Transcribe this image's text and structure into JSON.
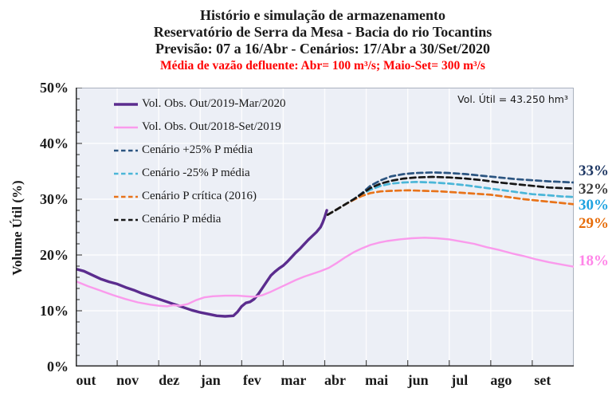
{
  "chart_data": {
    "type": "line",
    "title": "Histório e simulação de armazenamento",
    "subtitle": "Reservatório de Serra da Mesa - Bacia do rio Tocantins",
    "subtitle2": "Previsão: 07 a 16/Abr - Cenários: 17/Abr a 30/Set/2020",
    "subtitle3": "Média de vazão defluente: Abr= 100 m³/s; Maio-Set= 300 m³/s",
    "subtitle3_color": "#FF0000",
    "annotation": "Vol. Útil = 43.250 hm³",
    "ylabel": "Volume Útil (%)",
    "xlabel": "",
    "ylim": [
      0,
      50
    ],
    "y_major_step": 10,
    "y_minor_step": 2,
    "y_tick_labels": [
      "0%",
      "10%",
      "20%",
      "30%",
      "40%",
      "50%"
    ],
    "x_range_months": [
      0,
      12
    ],
    "x_tick_labels": [
      "out",
      "nov",
      "dez",
      "jan",
      "fev",
      "mar",
      "abr",
      "mai",
      "jun",
      "jul",
      "ago",
      "set"
    ],
    "grid": true,
    "legend_position": "top-left-inside",
    "colors": {
      "plot_bg": "#ECEFF6",
      "grid": "#FFFFFF",
      "axis": "#2b2b2b",
      "frame": "#AAB1BE",
      "tick": "#4a4a4a"
    },
    "series": [
      {
        "name": "Vol. Obs. Out/2019-Mar/2020",
        "color": "#5B2C8E",
        "dash": "solid",
        "width": 3.4,
        "points": [
          [
            0,
            17.5
          ],
          [
            0.2,
            17.1
          ],
          [
            0.4,
            16.4
          ],
          [
            0.6,
            15.7
          ],
          [
            0.8,
            15.2
          ],
          [
            1,
            14.8
          ],
          [
            1.2,
            14.2
          ],
          [
            1.4,
            13.7
          ],
          [
            1.6,
            13.1
          ],
          [
            1.8,
            12.6
          ],
          [
            2,
            12.1
          ],
          [
            2.2,
            11.6
          ],
          [
            2.4,
            11.1
          ],
          [
            2.6,
            10.6
          ],
          [
            2.8,
            10.1
          ],
          [
            3,
            9.7
          ],
          [
            3.2,
            9.4
          ],
          [
            3.4,
            9.1
          ],
          [
            3.6,
            9
          ],
          [
            3.8,
            9.1
          ],
          [
            3.9,
            9.8
          ],
          [
            4,
            10.8
          ],
          [
            4.1,
            11.4
          ],
          [
            4.2,
            11.6
          ],
          [
            4.3,
            12.1
          ],
          [
            4.4,
            13
          ],
          [
            4.5,
            14.1
          ],
          [
            4.6,
            15.2
          ],
          [
            4.7,
            16.3
          ],
          [
            4.8,
            17
          ],
          [
            4.9,
            17.6
          ],
          [
            5,
            18.1
          ],
          [
            5.1,
            18.8
          ],
          [
            5.2,
            19.6
          ],
          [
            5.3,
            20.4
          ],
          [
            5.4,
            21.1
          ],
          [
            5.5,
            21.9
          ],
          [
            5.6,
            22.7
          ],
          [
            5.7,
            23.4
          ],
          [
            5.8,
            24.1
          ],
          [
            5.9,
            25
          ],
          [
            5.95,
            25.8
          ],
          [
            6,
            26.8
          ],
          [
            6.05,
            28
          ]
        ]
      },
      {
        "name": "Vol. Obs. Out/2018-Set/2019",
        "color": "#FA9AEC",
        "dash": "solid",
        "width": 2.4,
        "points": [
          [
            0,
            15.3
          ],
          [
            0.3,
            14.4
          ],
          [
            0.6,
            13.6
          ],
          [
            0.9,
            12.8
          ],
          [
            1.2,
            12.1
          ],
          [
            1.5,
            11.5
          ],
          [
            1.8,
            11.1
          ],
          [
            2,
            10.9
          ],
          [
            2.2,
            10.8
          ],
          [
            2.35,
            11
          ],
          [
            2.5,
            10.9
          ],
          [
            2.7,
            11.2
          ],
          [
            2.9,
            11.9
          ],
          [
            3.1,
            12.4
          ],
          [
            3.3,
            12.6
          ],
          [
            3.6,
            12.7
          ],
          [
            3.9,
            12.7
          ],
          [
            4.1,
            12.6
          ],
          [
            4.3,
            12.5
          ],
          [
            4.5,
            12.8
          ],
          [
            4.7,
            13.4
          ],
          [
            4.9,
            14.1
          ],
          [
            5.1,
            14.8
          ],
          [
            5.3,
            15.5
          ],
          [
            5.5,
            16.1
          ],
          [
            5.7,
            16.6
          ],
          [
            5.9,
            17.1
          ],
          [
            6.1,
            17.7
          ],
          [
            6.3,
            18.6
          ],
          [
            6.5,
            19.6
          ],
          [
            6.7,
            20.5
          ],
          [
            6.9,
            21.2
          ],
          [
            7.1,
            21.8
          ],
          [
            7.3,
            22.2
          ],
          [
            7.5,
            22.5
          ],
          [
            7.8,
            22.8
          ],
          [
            8.1,
            23
          ],
          [
            8.4,
            23.1
          ],
          [
            8.7,
            23
          ],
          [
            9,
            22.8
          ],
          [
            9.3,
            22.4
          ],
          [
            9.6,
            22
          ],
          [
            9.9,
            21.4
          ],
          [
            10.2,
            20.9
          ],
          [
            10.5,
            20.3
          ],
          [
            10.8,
            19.8
          ],
          [
            11.1,
            19.2
          ],
          [
            11.4,
            18.7
          ],
          [
            11.7,
            18.3
          ],
          [
            12,
            17.9
          ]
        ]
      },
      {
        "name": "Cenário +25% P média",
        "color": "#2B5480",
        "dash": "dashed",
        "width": 2.7,
        "points": [
          [
            6.07,
            27.2
          ],
          [
            6.3,
            28.2
          ],
          [
            6.5,
            29.1
          ],
          [
            6.7,
            30
          ],
          [
            6.9,
            31.1
          ],
          [
            7.1,
            32.4
          ],
          [
            7.35,
            33.4
          ],
          [
            7.6,
            34.1
          ],
          [
            7.9,
            34.5
          ],
          [
            8.2,
            34.7
          ],
          [
            8.6,
            34.8
          ],
          [
            9,
            34.7
          ],
          [
            9.4,
            34.5
          ],
          [
            9.8,
            34.2
          ],
          [
            10.2,
            33.9
          ],
          [
            10.6,
            33.6
          ],
          [
            11,
            33.4
          ],
          [
            11.4,
            33.2
          ],
          [
            11.7,
            33.1
          ],
          [
            12,
            33
          ]
        ]
      },
      {
        "name": "Cenário -25% P média",
        "color": "#4BB6D8",
        "dash": "dashed",
        "width": 2.7,
        "points": [
          [
            6.07,
            27.2
          ],
          [
            6.3,
            28.2
          ],
          [
            6.5,
            29.1
          ],
          [
            6.7,
            30
          ],
          [
            6.9,
            30.9
          ],
          [
            7.1,
            31.7
          ],
          [
            7.35,
            32.4
          ],
          [
            7.6,
            32.8
          ],
          [
            7.9,
            33
          ],
          [
            8.2,
            33.1
          ],
          [
            8.6,
            33
          ],
          [
            9,
            32.8
          ],
          [
            9.4,
            32.5
          ],
          [
            9.8,
            32.1
          ],
          [
            10.2,
            31.7
          ],
          [
            10.6,
            31.3
          ],
          [
            11,
            30.9
          ],
          [
            11.4,
            30.7
          ],
          [
            11.7,
            30.5
          ],
          [
            12,
            30.4
          ]
        ]
      },
      {
        "name": "Cenário P crítica (2016)",
        "color": "#E8731A",
        "dash": "dashed",
        "width": 2.7,
        "points": [
          [
            6.07,
            27.2
          ],
          [
            6.3,
            28.2
          ],
          [
            6.5,
            29.1
          ],
          [
            6.7,
            29.9
          ],
          [
            6.9,
            30.6
          ],
          [
            7.1,
            31.1
          ],
          [
            7.35,
            31.4
          ],
          [
            7.6,
            31.5
          ],
          [
            8,
            31.6
          ],
          [
            8.4,
            31.5
          ],
          [
            8.8,
            31.4
          ],
          [
            9.2,
            31.2
          ],
          [
            9.6,
            31
          ],
          [
            10,
            30.8
          ],
          [
            10.4,
            30.4
          ],
          [
            10.8,
            30
          ],
          [
            11.2,
            29.7
          ],
          [
            11.6,
            29.4
          ],
          [
            12,
            29.1
          ]
        ]
      },
      {
        "name": "Cenário P média",
        "color": "#161616",
        "dash": "dashed",
        "width": 2.7,
        "points": [
          [
            6.07,
            27.2
          ],
          [
            6.3,
            28.2
          ],
          [
            6.5,
            29.1
          ],
          [
            6.7,
            30
          ],
          [
            6.9,
            31
          ],
          [
            7.1,
            32
          ],
          [
            7.35,
            32.8
          ],
          [
            7.6,
            33.3
          ],
          [
            7.9,
            33.7
          ],
          [
            8.2,
            33.9
          ],
          [
            8.6,
            34
          ],
          [
            9,
            33.9
          ],
          [
            9.4,
            33.7
          ],
          [
            9.8,
            33.4
          ],
          [
            10.2,
            33
          ],
          [
            10.6,
            32.7
          ],
          [
            11,
            32.4
          ],
          [
            11.4,
            32.1
          ],
          [
            11.7,
            32
          ],
          [
            12,
            31.9
          ]
        ]
      }
    ],
    "end_labels": [
      {
        "text": "33%",
        "color": "#1F3864",
        "at": 35.0
      },
      {
        "text": "32%",
        "color": "#3F3F3F",
        "at": 31.7
      },
      {
        "text": "30%",
        "color": "#1FA3E0",
        "at": 28.9
      },
      {
        "text": "29%",
        "color": "#E66C09",
        "at": 25.6
      },
      {
        "text": "18%",
        "color": "#FF85E8",
        "at": 18.9
      }
    ]
  }
}
